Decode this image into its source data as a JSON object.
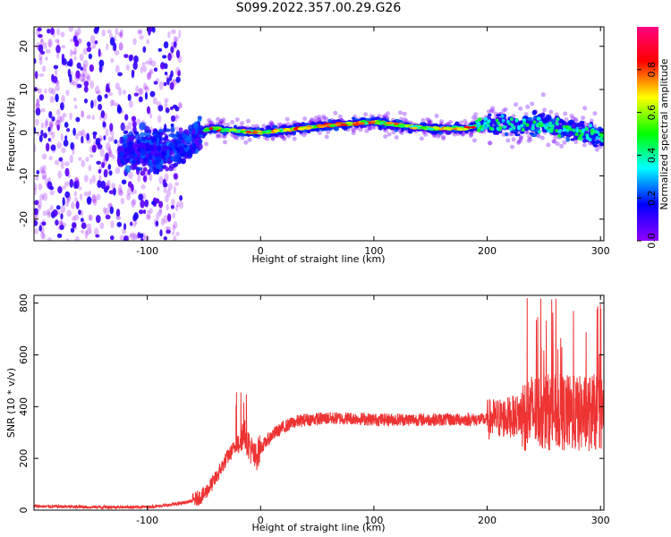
{
  "title": "S099.2022.357.00.29.G26",
  "chart_data": [
    {
      "type": "heatmap",
      "xlabel": "Height of straight line (km)",
      "ylabel": "Frequency (Hz)",
      "xlim": [
        -200,
        303
      ],
      "ylim": [
        -25,
        24.5
      ],
      "x_ticks": [
        -100,
        0,
        100,
        200,
        300
      ],
      "y_ticks": [
        -20,
        -10,
        0,
        10,
        20
      ],
      "colorbar": {
        "label": "Normalized spectral amplitude",
        "range": [
          0,
          1
        ],
        "ticks": [
          0.0,
          0.2,
          0.4,
          0.6,
          0.8
        ],
        "tick_labels": [
          "0.0",
          "0.2",
          "0.4",
          "0.6",
          "0.8"
        ],
        "colormap": [
          "#9000ff",
          "#0000ff",
          "#00ffff",
          "#00ff00",
          "#ffff00",
          "#ff0000",
          "#ff0080"
        ]
      },
      "ridge": {
        "x": [
          -80,
          -60,
          -52,
          -45,
          0,
          50,
          100,
          130,
          150,
          180,
          200,
          250,
          303
        ],
        "freq": [
          -4,
          -2,
          0,
          1,
          0,
          1.5,
          2.5,
          1.5,
          1,
          1,
          2,
          2,
          -1
        ]
      }
    },
    {
      "type": "line",
      "xlabel": "Height of straight line (km)",
      "ylabel": "SNR (10 * v/v)",
      "xlim": [
        -200,
        303
      ],
      "ylim": [
        0,
        830
      ],
      "x_ticks": [
        -100,
        0,
        100,
        200,
        300
      ],
      "y_ticks": [
        0,
        200,
        400,
        600,
        800
      ],
      "color": "#ee3333",
      "series": [
        {
          "x": [
            -200,
            -150,
            -100,
            -80,
            -60,
            -50,
            -40,
            -30,
            -20,
            -15,
            -10,
            -5,
            0,
            10,
            20,
            30,
            40,
            60,
            80,
            100,
            130,
            150,
            180,
            200,
            220,
            240,
            260,
            280,
            303
          ],
          "y": [
            15,
            12,
            12,
            20,
            35,
            60,
            120,
            200,
            260,
            300,
            250,
            200,
            240,
            290,
            320,
            340,
            350,
            355,
            355,
            350,
            350,
            350,
            350,
            350,
            360,
            380,
            380,
            370,
            380
          ]
        }
      ]
    }
  ]
}
